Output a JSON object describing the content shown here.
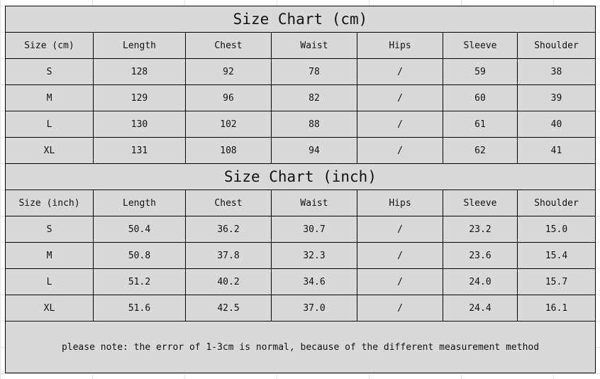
{
  "cm_table": {
    "title": "Size Chart (cm)",
    "headers": [
      "Size (cm)",
      "Length",
      "Chest",
      "Waist",
      "Hips",
      "Sleeve",
      "Shoulder"
    ],
    "rows": [
      [
        "S",
        "128",
        "92",
        "78",
        "/",
        "59",
        "38"
      ],
      [
        "M",
        "129",
        "96",
        "82",
        "/",
        "60",
        "39"
      ],
      [
        "L",
        "130",
        "102",
        "88",
        "/",
        "61",
        "40"
      ],
      [
        "XL",
        "131",
        "108",
        "94",
        "/",
        "62",
        "41"
      ]
    ]
  },
  "inch_table": {
    "title": "Size Chart (inch)",
    "headers": [
      "Size (inch)",
      "Length",
      "Chest",
      "Waist",
      "Hips",
      "Sleeve",
      "Shoulder"
    ],
    "rows": [
      [
        "S",
        "50.4",
        "36.2",
        "30.7",
        "/",
        "23.2",
        "15.0"
      ],
      [
        "M",
        "50.8",
        "37.8",
        "32.3",
        "/",
        "23.6",
        "15.4"
      ],
      [
        "L",
        "51.2",
        "40.2",
        "34.6",
        "/",
        "24.0",
        "15.7"
      ],
      [
        "XL",
        "51.6",
        "42.5",
        "37.0",
        "/",
        "24.4",
        "16.1"
      ]
    ]
  },
  "note": "please note: the error of 1-3cm is normal, because of the different measurement method",
  "colors": {
    "cell_bg": "#d9d9d9",
    "border": "#000000",
    "gridline": "#e3e3e3"
  }
}
